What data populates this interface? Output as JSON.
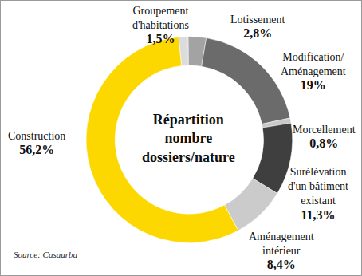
{
  "chart_data": {
    "type": "pie",
    "title": "Répartition nombre dossiers/nature",
    "categories": [
      "Groupement d'habitations",
      "Lotissement",
      "Modification/ Aménagement",
      "Morcellement",
      "Surélévation d'un bâtiment existant",
      "Aménagement intérieur",
      "Construction"
    ],
    "values": [
      1.5,
      2.8,
      19,
      0.8,
      11.3,
      8.4,
      56.2
    ],
    "value_labels": [
      "1,5%",
      "2,8%",
      "19%",
      "0,8%",
      "11,3%",
      "8,4%",
      "56,2%"
    ],
    "colors": [
      "#dcdcdc",
      "#a3a3a3",
      "#6b6b6b",
      "#c9c9c9",
      "#3f3f3f",
      "#cbcbcb",
      "#fdd800"
    ],
    "data_labels": true,
    "source": "Source: Casaurba"
  }
}
